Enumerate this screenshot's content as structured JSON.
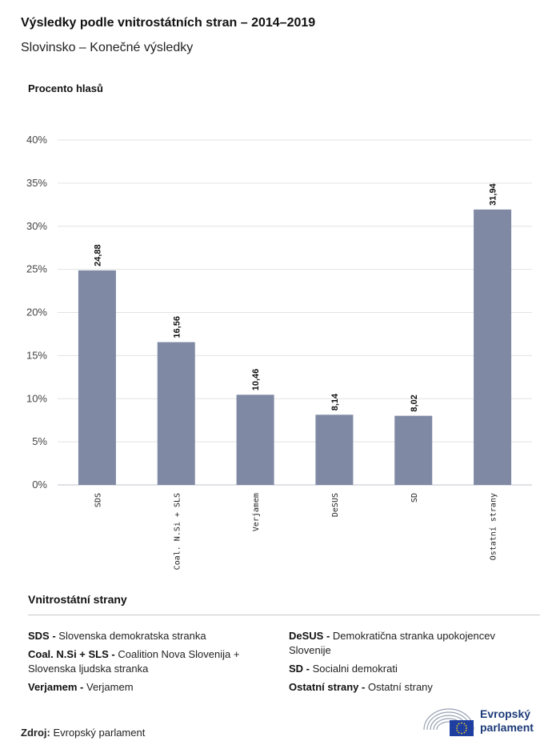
{
  "header": {
    "title": "Výsledky podle vnitrostátních stran – 2014–2019",
    "subtitle": "Slovinsko – Konečné výsledky"
  },
  "chart_data": {
    "type": "bar",
    "title": "Výsledky podle vnitrostátních stran – 2014–2019",
    "subtitle": "Slovinsko – Konečné výsledky",
    "ylabel": "Procento hlasů",
    "categories": [
      "SDS",
      "Coal. N.Si + SLS",
      "Verjamem",
      "DeSUS",
      "SD",
      "Ostatní strany"
    ],
    "values": [
      24.88,
      16.56,
      10.46,
      8.14,
      8.02,
      31.94
    ],
    "value_labels": [
      "24,88",
      "16,56",
      "10,46",
      "8,14",
      "8,02",
      "31,94"
    ],
    "ylim": [
      0,
      40
    ],
    "yticks": [
      0,
      5,
      10,
      15,
      20,
      25,
      30,
      35,
      40
    ],
    "ytick_labels": [
      "0%",
      "5%",
      "10%",
      "15%",
      "20%",
      "25%",
      "30%",
      "35%",
      "40%"
    ],
    "grid": true,
    "bar_color": "#7f89a4"
  },
  "legend": {
    "title": "Vnitrostátní strany",
    "items": [
      {
        "abbr": "SDS -",
        "name": "Slovenska demokratska stranka"
      },
      {
        "abbr": "Coal. N.Si + SLS -",
        "name": "Coalition Nova Slovenija + Slovenska ljudska stranka"
      },
      {
        "abbr": "Verjamem -",
        "name": "Verjamem"
      },
      {
        "abbr": "DeSUS -",
        "name": "Demokratična stranka upokojencev Slovenije"
      },
      {
        "abbr": "SD -",
        "name": "Socialni demokrati"
      },
      {
        "abbr": "Ostatní strany -",
        "name": "Ostatní strany"
      }
    ]
  },
  "footer": {
    "source_label": "Zdroj:",
    "source_value": "Evropský parlament",
    "logo_line1": "Evropský",
    "logo_line2": "parlament",
    "logo_icon": "european-parliament-hemicycle-icon",
    "logo_color": "#1c3a78",
    "flag_color": "#1f3fa0"
  }
}
